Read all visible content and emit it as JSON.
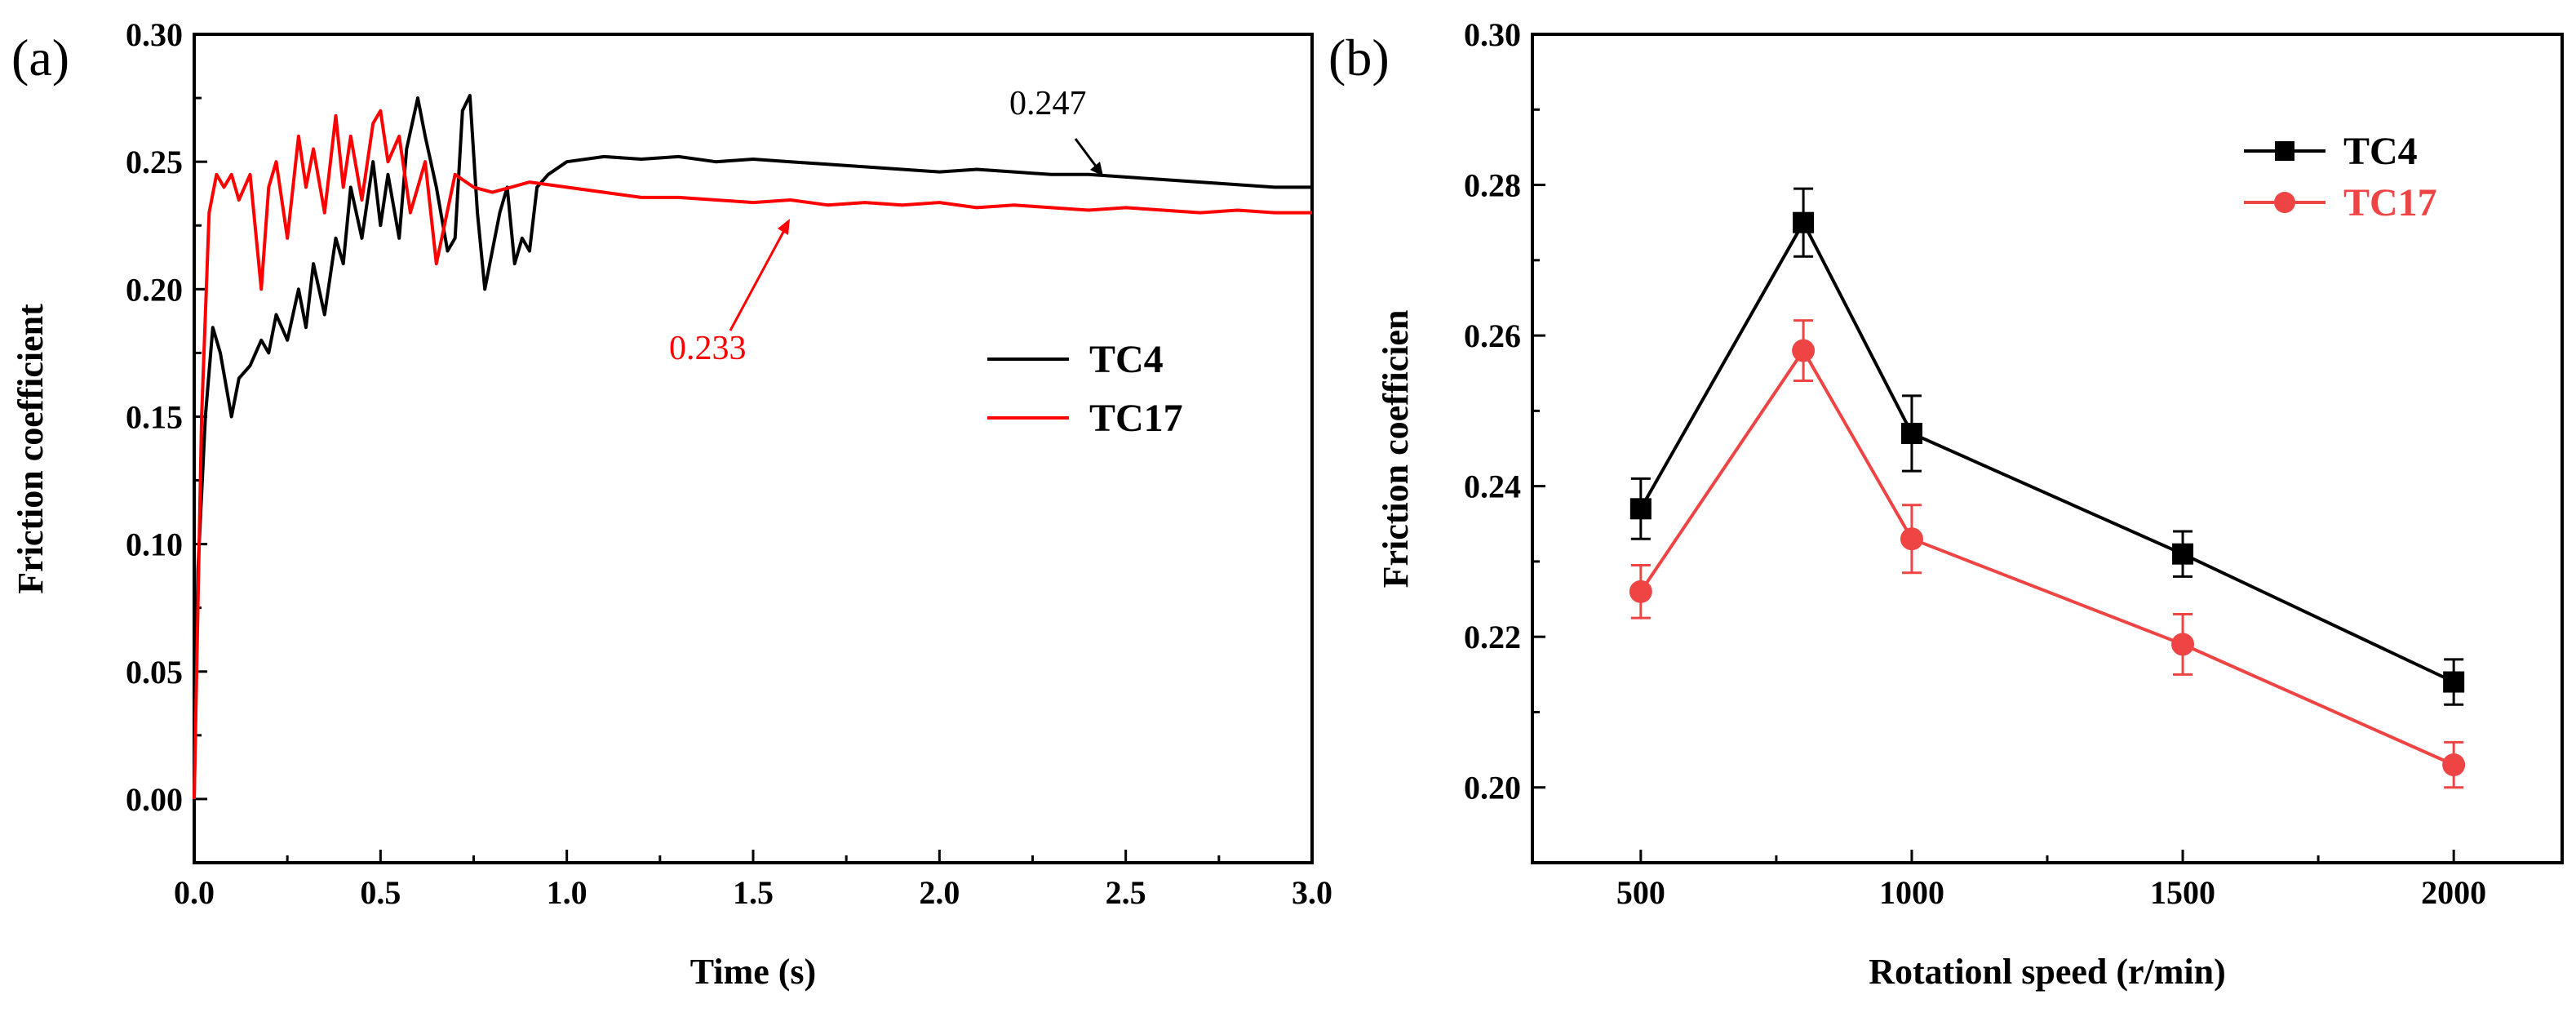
{
  "colors": {
    "tc4": "#000000",
    "tc17_a": "#ff0000",
    "tc17_b": "#ee4444",
    "axis": "#000000",
    "background": "#ffffff"
  },
  "chart_data": [
    {
      "type": "line",
      "panel_label": "(a)",
      "title": "",
      "xlabel": "Time (s)",
      "ylabel": "Friction coefficient",
      "xlim": [
        0.0,
        3.0
      ],
      "ylim": [
        -0.025,
        0.3
      ],
      "x_ticks": [
        "0.0",
        "0.5",
        "1.0",
        "1.5",
        "2.0",
        "2.5",
        "3.0"
      ],
      "y_ticks": [
        "0.00",
        "0.05",
        "0.10",
        "0.15",
        "0.20",
        "0.25",
        "0.30"
      ],
      "legend_position": "right",
      "series": [
        {
          "name": "TC4",
          "color": "#000000",
          "x": [
            0.0,
            0.01,
            0.03,
            0.05,
            0.07,
            0.1,
            0.12,
            0.15,
            0.18,
            0.2,
            0.22,
            0.25,
            0.28,
            0.3,
            0.32,
            0.35,
            0.38,
            0.4,
            0.42,
            0.45,
            0.48,
            0.5,
            0.52,
            0.55,
            0.57,
            0.6,
            0.62,
            0.65,
            0.68,
            0.7,
            0.72,
            0.74,
            0.76,
            0.78,
            0.8,
            0.82,
            0.84,
            0.86,
            0.88,
            0.9,
            0.92,
            0.95,
            1.0,
            1.1,
            1.2,
            1.3,
            1.4,
            1.5,
            1.6,
            1.7,
            1.8,
            1.9,
            2.0,
            2.1,
            2.2,
            2.3,
            2.4,
            2.5,
            2.6,
            2.7,
            2.8,
            2.9,
            3.0
          ],
          "values": [
            0.0,
            0.09,
            0.15,
            0.185,
            0.175,
            0.15,
            0.165,
            0.17,
            0.18,
            0.175,
            0.19,
            0.18,
            0.2,
            0.185,
            0.21,
            0.19,
            0.22,
            0.21,
            0.24,
            0.22,
            0.25,
            0.225,
            0.245,
            0.22,
            0.255,
            0.275,
            0.26,
            0.24,
            0.215,
            0.22,
            0.27,
            0.276,
            0.23,
            0.2,
            0.215,
            0.23,
            0.24,
            0.21,
            0.22,
            0.215,
            0.24,
            0.245,
            0.25,
            0.252,
            0.251,
            0.252,
            0.25,
            0.251,
            0.25,
            0.249,
            0.248,
            0.247,
            0.246,
            0.247,
            0.246,
            0.245,
            0.245,
            0.244,
            0.243,
            0.242,
            0.241,
            0.24,
            0.24
          ]
        },
        {
          "name": "TC17",
          "color": "#ff0000",
          "x": [
            0.0,
            0.02,
            0.04,
            0.06,
            0.08,
            0.1,
            0.12,
            0.15,
            0.18,
            0.2,
            0.22,
            0.25,
            0.28,
            0.3,
            0.32,
            0.35,
            0.38,
            0.4,
            0.42,
            0.45,
            0.48,
            0.5,
            0.52,
            0.55,
            0.58,
            0.6,
            0.62,
            0.65,
            0.7,
            0.75,
            0.8,
            0.85,
            0.9,
            1.0,
            1.1,
            1.2,
            1.3,
            1.4,
            1.5,
            1.6,
            1.7,
            1.8,
            1.9,
            2.0,
            2.1,
            2.2,
            2.3,
            2.4,
            2.5,
            2.6,
            2.7,
            2.8,
            2.9,
            3.0
          ],
          "values": [
            0.0,
            0.15,
            0.23,
            0.245,
            0.24,
            0.245,
            0.235,
            0.245,
            0.2,
            0.24,
            0.25,
            0.22,
            0.26,
            0.24,
            0.255,
            0.23,
            0.268,
            0.24,
            0.26,
            0.235,
            0.265,
            0.27,
            0.25,
            0.26,
            0.23,
            0.24,
            0.25,
            0.21,
            0.245,
            0.24,
            0.238,
            0.24,
            0.242,
            0.24,
            0.238,
            0.236,
            0.236,
            0.235,
            0.234,
            0.235,
            0.233,
            0.234,
            0.233,
            0.234,
            0.232,
            0.233,
            0.232,
            0.231,
            0.232,
            0.231,
            0.23,
            0.231,
            0.23,
            0.23
          ]
        }
      ],
      "annotations": [
        {
          "text": "0.247",
          "color": "#000000",
          "x": 2.45,
          "y": 0.247
        },
        {
          "text": "0.233",
          "color": "#ff0000",
          "x": 1.6,
          "y": 0.233
        }
      ]
    },
    {
      "type": "line",
      "panel_label": "(b)",
      "title": "",
      "xlabel": "Rotationl speed (r/min)",
      "ylabel": "Friction coefficien",
      "xlim": [
        300,
        2200
      ],
      "ylim": [
        0.19,
        0.3
      ],
      "x_ticks": [
        "500",
        "1000",
        "1500",
        "2000"
      ],
      "y_ticks": [
        "0.20",
        "0.22",
        "0.24",
        "0.26",
        "0.28",
        "0.30"
      ],
      "legend_position": "top-right",
      "categories": [
        500,
        800,
        1000,
        1500,
        2000
      ],
      "series": [
        {
          "name": "TC4",
          "color": "#000000",
          "marker": "square",
          "values": [
            0.237,
            0.275,
            0.247,
            0.231,
            0.214
          ],
          "errors": [
            0.004,
            0.0045,
            0.005,
            0.003,
            0.003
          ]
        },
        {
          "name": "TC17",
          "color": "#ee4444",
          "marker": "circle",
          "values": [
            0.226,
            0.258,
            0.233,
            0.219,
            0.203
          ],
          "errors": [
            0.0035,
            0.004,
            0.0045,
            0.004,
            0.003
          ]
        }
      ]
    }
  ]
}
